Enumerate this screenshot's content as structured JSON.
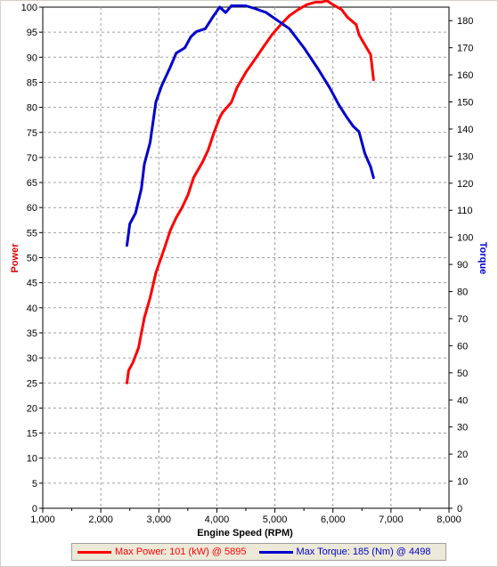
{
  "chart_data": {
    "type": "line",
    "xlabel": "Engine Speed (RPM)",
    "ylabel_left": "Power",
    "ylabel_right": "Torque",
    "xlim": [
      1000,
      8000
    ],
    "ylim_left": [
      0,
      100
    ],
    "ylim_right": [
      0,
      185
    ],
    "x_ticks": [
      "1,000",
      "2,000",
      "3,000",
      "4,000",
      "5,000",
      "6,000",
      "7,000",
      "8,000"
    ],
    "left_ticks": [
      "0",
      "5",
      "10",
      "15",
      "20",
      "25",
      "30",
      "35",
      "40",
      "45",
      "50",
      "55",
      "60",
      "65",
      "70",
      "75",
      "80",
      "85",
      "90",
      "95",
      "100"
    ],
    "right_ticks": [
      "0",
      "10",
      "20",
      "30",
      "40",
      "50",
      "60",
      "70",
      "80",
      "90",
      "100",
      "110",
      "120",
      "130",
      "140",
      "150",
      "160",
      "170",
      "180"
    ],
    "grid": true,
    "legend_position": "bottom",
    "series": [
      {
        "name": "Max Power: 101 (kW) @ 5895",
        "axis": "left",
        "color": "#ff0000",
        "points": [
          [
            2450,
            25
          ],
          [
            2480,
            27.5
          ],
          [
            2550,
            29
          ],
          [
            2650,
            32
          ],
          [
            2750,
            38
          ],
          [
            2850,
            42
          ],
          [
            2950,
            47
          ],
          [
            3100,
            52
          ],
          [
            3200,
            55.5
          ],
          [
            3300,
            58
          ],
          [
            3400,
            60
          ],
          [
            3500,
            62.5
          ],
          [
            3600,
            66
          ],
          [
            3750,
            69
          ],
          [
            3850,
            71.5
          ],
          [
            3950,
            75
          ],
          [
            4050,
            78
          ],
          [
            4100,
            79
          ],
          [
            4250,
            81
          ],
          [
            4350,
            84
          ],
          [
            4500,
            87
          ],
          [
            4650,
            89.5
          ],
          [
            4800,
            92
          ],
          [
            4950,
            94.5
          ],
          [
            5100,
            96.5
          ],
          [
            5250,
            98.3
          ],
          [
            5400,
            99.5
          ],
          [
            5550,
            100.5
          ],
          [
            5700,
            101
          ],
          [
            5800,
            101
          ],
          [
            5895,
            101.3
          ],
          [
            6000,
            100.5
          ],
          [
            6150,
            99.5
          ],
          [
            6250,
            98
          ],
          [
            6400,
            96.5
          ],
          [
            6450,
            94.5
          ],
          [
            6550,
            92.5
          ],
          [
            6650,
            90.5
          ],
          [
            6700,
            85.5
          ]
        ]
      },
      {
        "name": "Max Torque: 185 (Nm) @ 4498",
        "axis": "right",
        "color": "#0000cc",
        "points": [
          [
            2450,
            97
          ],
          [
            2500,
            105
          ],
          [
            2600,
            109
          ],
          [
            2700,
            118
          ],
          [
            2750,
            127
          ],
          [
            2850,
            135
          ],
          [
            2950,
            150
          ],
          [
            3050,
            156
          ],
          [
            3200,
            163
          ],
          [
            3300,
            168
          ],
          [
            3450,
            170
          ],
          [
            3550,
            174
          ],
          [
            3650,
            176
          ],
          [
            3800,
            177
          ],
          [
            3950,
            182
          ],
          [
            4050,
            185
          ],
          [
            4150,
            183
          ],
          [
            4250,
            185.5
          ],
          [
            4350,
            185.5
          ],
          [
            4498,
            185.5
          ],
          [
            4650,
            184.5
          ],
          [
            4850,
            183
          ],
          [
            5050,
            180
          ],
          [
            5250,
            177
          ],
          [
            5500,
            170
          ],
          [
            5750,
            162
          ],
          [
            5950,
            155
          ],
          [
            6100,
            149
          ],
          [
            6250,
            144
          ],
          [
            6350,
            141
          ],
          [
            6450,
            139
          ],
          [
            6550,
            131
          ],
          [
            6650,
            126
          ],
          [
            6700,
            122
          ]
        ]
      }
    ]
  }
}
